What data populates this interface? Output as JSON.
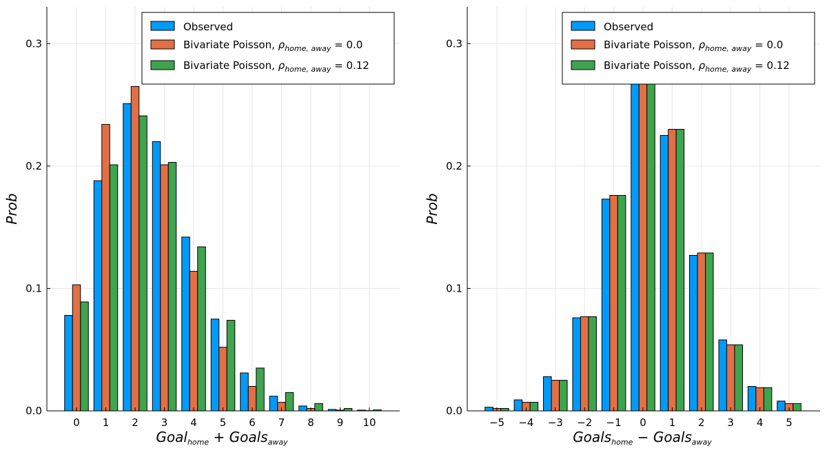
{
  "chart_data": [
    {
      "type": "bar",
      "xlabel": "Goal_home + Goals_away",
      "ylabel": "Prob",
      "categories": [
        "0",
        "1",
        "2",
        "3",
        "4",
        "5",
        "6",
        "7",
        "8",
        "9",
        "10"
      ],
      "ylim": [
        0,
        0.33
      ],
      "yticks": [
        "0.0",
        "0.1",
        "0.2",
        "0.3"
      ],
      "grid": true,
      "legend_position": "top-right",
      "series": [
        {
          "name": "Observed",
          "color": "#009af9",
          "values": [
            0.078,
            0.188,
            0.251,
            0.22,
            0.142,
            0.075,
            0.031,
            0.012,
            0.004,
            0.0012,
            0.0006
          ]
        },
        {
          "name": "Bivariate Poisson, ρ_home,away = 0.0",
          "color": "#e26f46",
          "values": [
            0.103,
            0.234,
            0.265,
            0.201,
            0.114,
            0.052,
            0.02,
            0.007,
            0.002,
            0.0006,
            0.0002
          ]
        },
        {
          "name": "Bivariate Poisson, ρ_home,away = 0.12",
          "color": "#3ea44e",
          "values": [
            0.089,
            0.201,
            0.241,
            0.203,
            0.134,
            0.074,
            0.035,
            0.015,
            0.006,
            0.002,
            0.0008
          ]
        }
      ]
    },
    {
      "type": "bar",
      "xlabel": "Goals_home − Goals_away",
      "ylabel": "Prob",
      "categories": [
        "−5",
        "−4",
        "−3",
        "−2",
        "−1",
        "0",
        "1",
        "2",
        "3",
        "4",
        "5"
      ],
      "ylim": [
        0,
        0.33
      ],
      "yticks": [
        "0.0",
        "0.1",
        "0.2",
        "0.3"
      ],
      "grid": true,
      "legend_position": "top-right",
      "series": [
        {
          "name": "Observed",
          "color": "#009af9",
          "values": [
            0.003,
            0.009,
            0.028,
            0.076,
            0.173,
            0.28,
            0.225,
            0.127,
            0.058,
            0.02,
            0.008
          ]
        },
        {
          "name": "Bivariate Poisson, ρ_home,away = 0.0",
          "color": "#e26f46",
          "values": [
            0.002,
            0.007,
            0.025,
            0.077,
            0.176,
            0.275,
            0.23,
            0.129,
            0.054,
            0.019,
            0.006
          ]
        },
        {
          "name": "Bivariate Poisson, ρ_home,away = 0.12",
          "color": "#3ea44e",
          "values": [
            0.002,
            0.007,
            0.025,
            0.077,
            0.176,
            0.275,
            0.23,
            0.129,
            0.054,
            0.019,
            0.006
          ]
        }
      ]
    }
  ],
  "legend": {
    "observed": "Observed",
    "bp_prefix": "Bivariate Poisson, ",
    "rho": "ρ",
    "rho_sub": "home, away",
    "eq0": " = 0.0",
    "eq12": " = 0.12"
  },
  "left_axis": {
    "xlabel_a": "Goal",
    "xlabel_a_sub": "home",
    "xlabel_op": " + ",
    "xlabel_b": "Goals",
    "xlabel_b_sub": "away",
    "ylabel": "Prob"
  },
  "right_axis": {
    "xlabel_a": "Goals",
    "xlabel_a_sub": "home",
    "xlabel_op": " − ",
    "xlabel_b": "Goals",
    "xlabel_b_sub": "away",
    "ylabel": "Prob"
  }
}
